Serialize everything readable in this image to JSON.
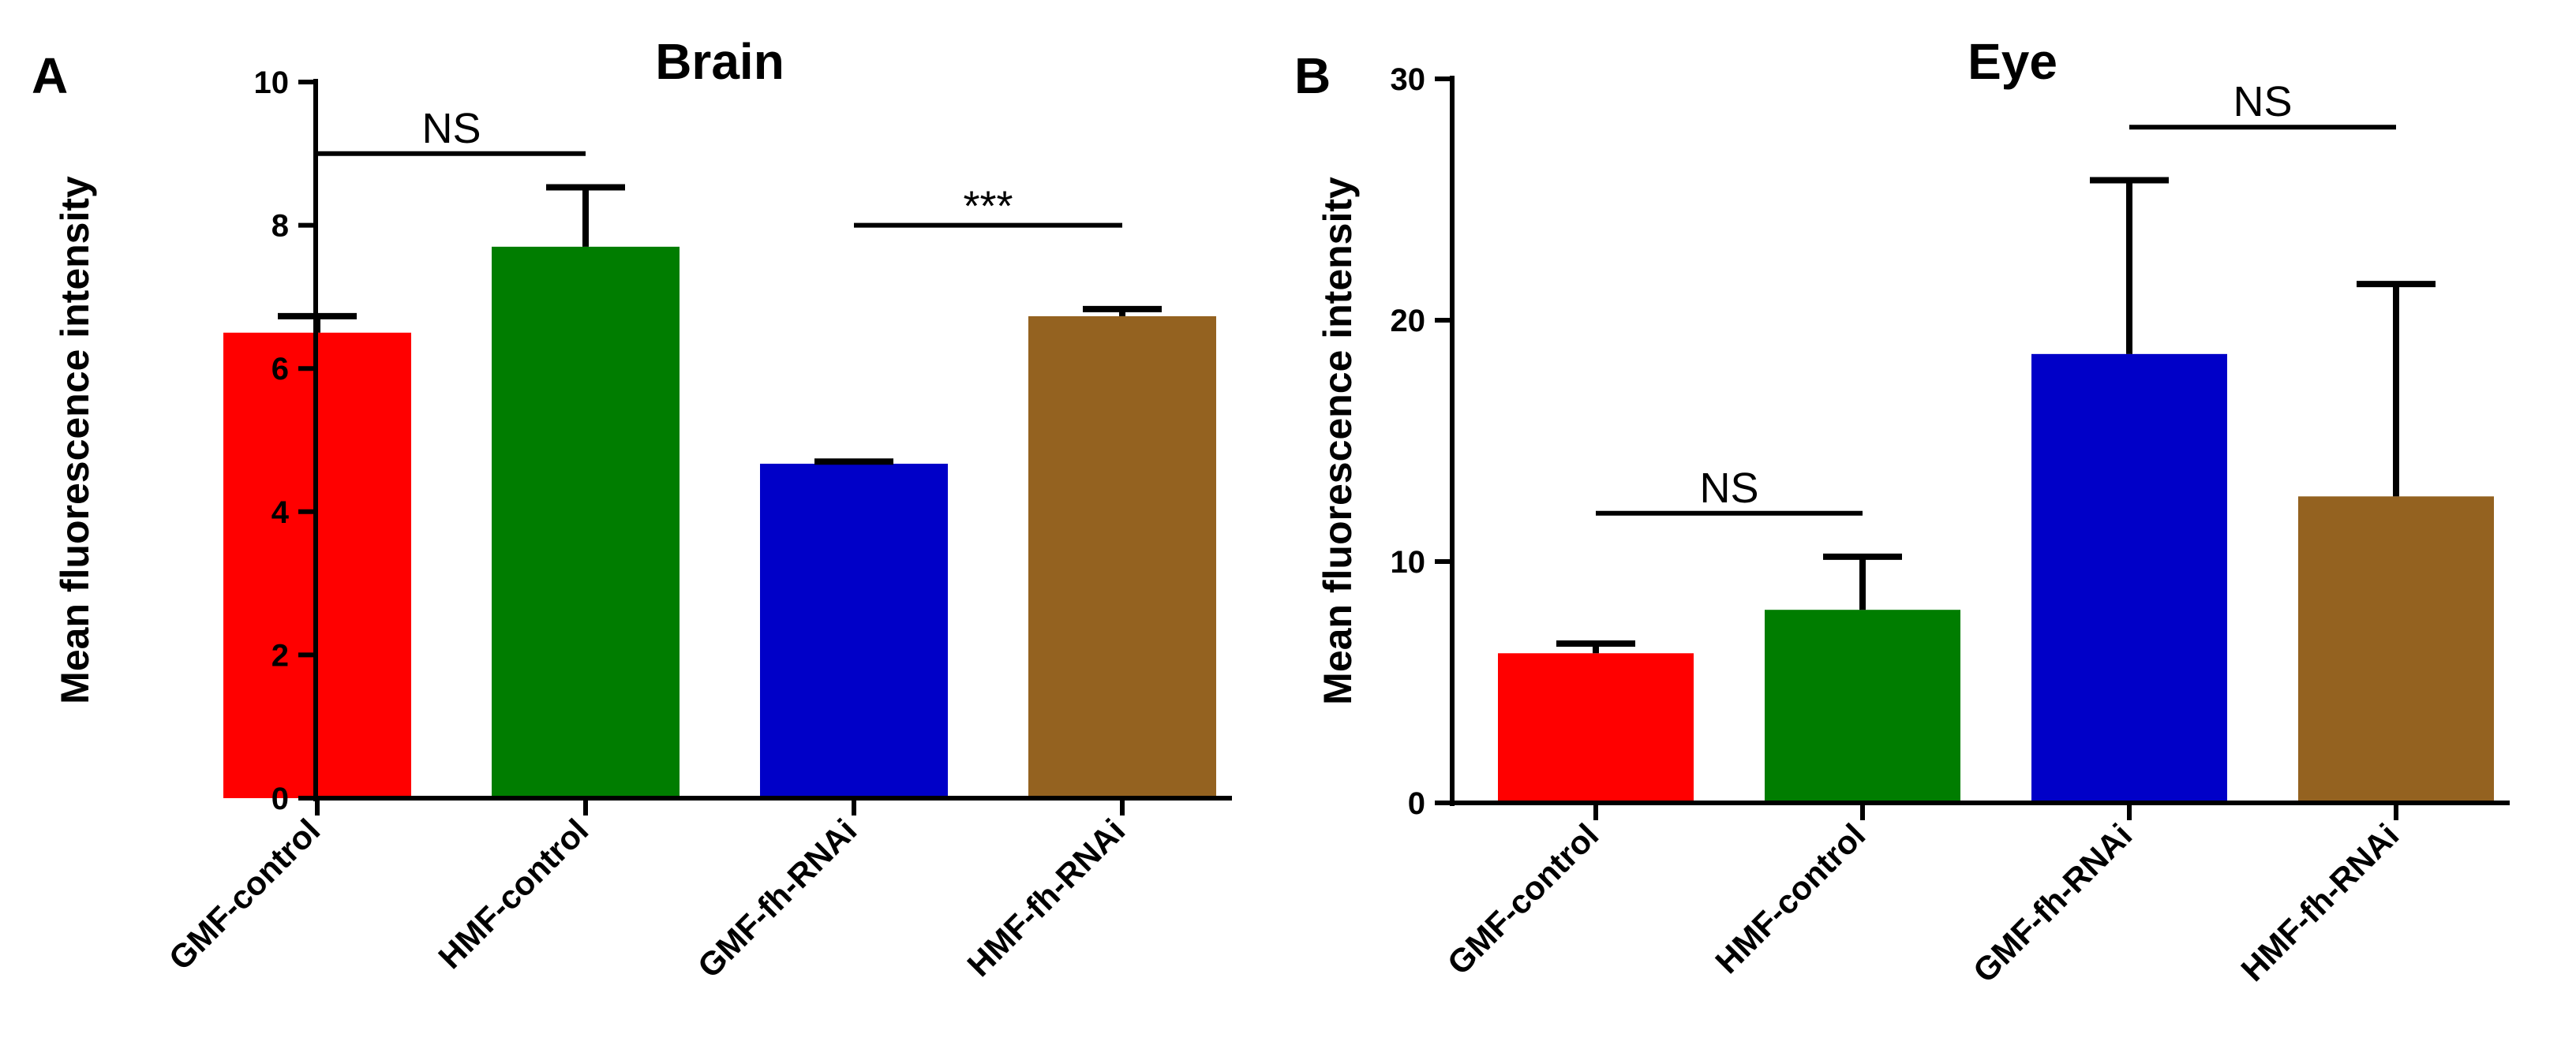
{
  "chart_data": [
    {
      "type": "bar",
      "panel_label": "A",
      "title": "Brain",
      "xlabel": "",
      "ylabel": "Mean fluorescence intensity",
      "ylim": [
        0,
        10
      ],
      "yticks": [
        0,
        2,
        4,
        6,
        8,
        10
      ],
      "categories": [
        "GMF-control",
        "HMF-control",
        "GMF-fh-RNAi",
        "HMF-fh-RNAi"
      ],
      "values": [
        6.5,
        7.7,
        4.67,
        6.73
      ],
      "error_upper": [
        0.23,
        0.83,
        0.03,
        0.1
      ],
      "colors": [
        "#ff0000",
        "#007d00",
        "#0000c8",
        "#946220"
      ],
      "annotations": [
        {
          "text": "NS",
          "from": 0,
          "to": 1,
          "y": 9.0
        },
        {
          "text": "***",
          "from": 2,
          "to": 3,
          "y": 8.0
        }
      ]
    },
    {
      "type": "bar",
      "panel_label": "B",
      "title": "Eye",
      "xlabel": "",
      "ylabel": "Mean fluorescence intensity",
      "ylim": [
        0,
        30
      ],
      "yticks": [
        0,
        10,
        20,
        30
      ],
      "categories": [
        "GMF-control",
        "HMF-control",
        "GMF-fh-RNAi",
        "HMF-fh-RNAi"
      ],
      "values": [
        6.2,
        8.0,
        18.6,
        12.7
      ],
      "error_upper": [
        0.4,
        2.2,
        7.2,
        8.8
      ],
      "colors": [
        "#ff0000",
        "#007d00",
        "#0000c8",
        "#946220"
      ],
      "annotations": [
        {
          "text": "NS",
          "from": 0,
          "to": 1,
          "y": 12.0
        },
        {
          "text": "NS",
          "from": 2,
          "to": 3,
          "y": 28.0
        }
      ]
    }
  ]
}
